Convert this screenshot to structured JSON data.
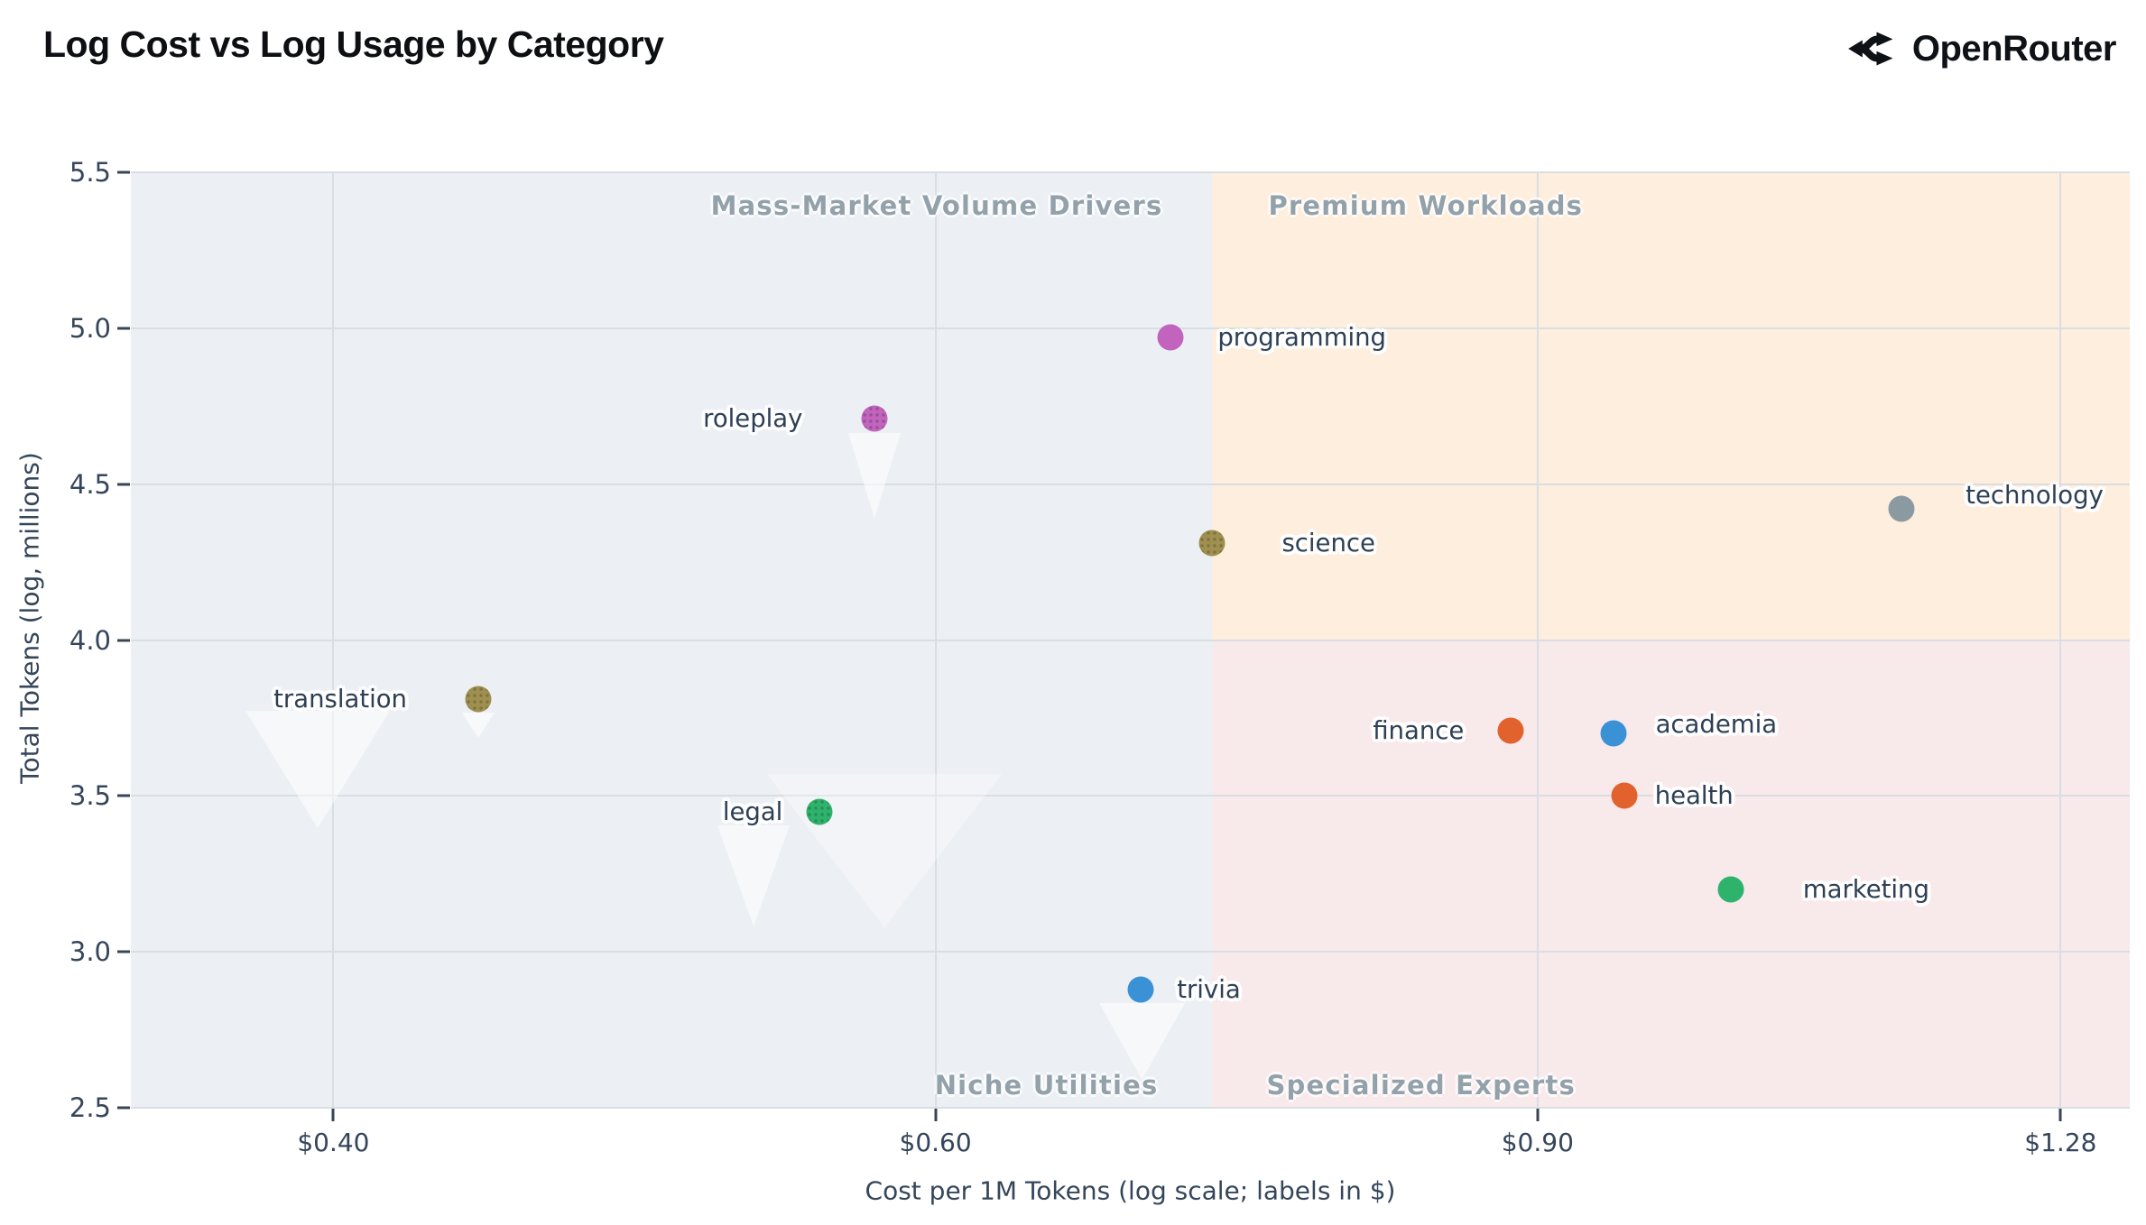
{
  "header": {
    "title": "Log Cost vs Log Usage by Category",
    "logo_text": "OpenRouter"
  },
  "chart_data": {
    "type": "scatter",
    "title": "Log Cost vs Log Usage by Category",
    "xlabel": "Cost per 1M Tokens (log scale; labels in $)",
    "ylabel": "Total Tokens (log, millions)",
    "x_scale": "log10",
    "xlim": [
      0.349,
      1.341
    ],
    "ylim": [
      2.5,
      5.5
    ],
    "grid": true,
    "x_ticks": [
      {
        "value": 0.4,
        "label": "$0.40"
      },
      {
        "value": 0.6,
        "label": "$0.60"
      },
      {
        "value": 0.9,
        "label": "$0.90"
      },
      {
        "value": 1.28,
        "label": "$1.28"
      }
    ],
    "y_ticks": [
      {
        "value": 5.5,
        "label": "5.5"
      },
      {
        "value": 5.0,
        "label": "5.0"
      },
      {
        "value": 4.5,
        "label": "4.5"
      },
      {
        "value": 4.0,
        "label": "4.0"
      },
      {
        "value": 3.5,
        "label": "3.5"
      },
      {
        "value": 3.0,
        "label": "3.0"
      },
      {
        "value": 2.5,
        "label": "2.5"
      }
    ],
    "quadrants": {
      "split_cost": 0.723,
      "split_usage": 4.0,
      "colors": {
        "left": "#ecf0f4",
        "top_right": "#fdeede",
        "bottom_right": "#f8e9eb"
      },
      "labels": [
        {
          "text": "Mass-Market Volume Drivers",
          "corner": "top-left"
        },
        {
          "text": "Premium Workloads",
          "corner": "top-right"
        },
        {
          "text": "Niche Utilities",
          "corner": "bottom-left"
        },
        {
          "text": "Specialized Experts",
          "corner": "bottom-right"
        }
      ]
    },
    "points": [
      {
        "name": "programming",
        "cost": 0.703,
        "log_tokens": 4.97,
        "color": "#c263bd",
        "hatched": false,
        "label_side": "right",
        "label_gap": 52,
        "label_dy": 0
      },
      {
        "name": "roleplay",
        "cost": 0.576,
        "log_tokens": 4.71,
        "color": "#c263bd",
        "hatched": true,
        "label_side": "left",
        "label_gap": 80,
        "label_dy": 0
      },
      {
        "name": "science",
        "cost": 0.723,
        "log_tokens": 4.31,
        "color": "#a0904f",
        "hatched": true,
        "label_side": "right",
        "label_gap": 77,
        "label_dy": 0
      },
      {
        "name": "technology",
        "cost": 1.15,
        "log_tokens": 4.42,
        "color": "#8b99a1",
        "hatched": false,
        "label_side": "right",
        "label_gap": 71,
        "label_dy": -15
      },
      {
        "name": "translation",
        "cost": 0.441,
        "log_tokens": 3.81,
        "color": "#a0904f",
        "hatched": true,
        "label_side": "left",
        "label_gap": 79,
        "label_dy": 0
      },
      {
        "name": "finance",
        "cost": 0.884,
        "log_tokens": 3.71,
        "color": "#e2622d",
        "hatched": false,
        "label_side": "left",
        "label_gap": 52,
        "label_dy": 0
      },
      {
        "name": "academia",
        "cost": 0.947,
        "log_tokens": 3.7,
        "color": "#3a91d6",
        "hatched": false,
        "label_side": "right",
        "label_gap": 47,
        "label_dy": -10
      },
      {
        "name": "health",
        "cost": 0.954,
        "log_tokens": 3.5,
        "color": "#e2622d",
        "hatched": false,
        "label_side": "right",
        "label_gap": 34,
        "label_dy": 0
      },
      {
        "name": "legal",
        "cost": 0.555,
        "log_tokens": 3.45,
        "color": "#2db36b",
        "hatched": true,
        "label_side": "left",
        "label_gap": 41,
        "label_dy": 0
      },
      {
        "name": "marketing",
        "cost": 1.025,
        "log_tokens": 3.2,
        "color": "#2db36b",
        "hatched": false,
        "label_side": "right",
        "label_gap": 80,
        "label_dy": 0
      },
      {
        "name": "trivia",
        "cost": 0.689,
        "log_tokens": 2.88,
        "color": "#3a91d6",
        "hatched": false,
        "label_side": "right",
        "label_gap": 40,
        "label_dy": 0
      }
    ]
  }
}
